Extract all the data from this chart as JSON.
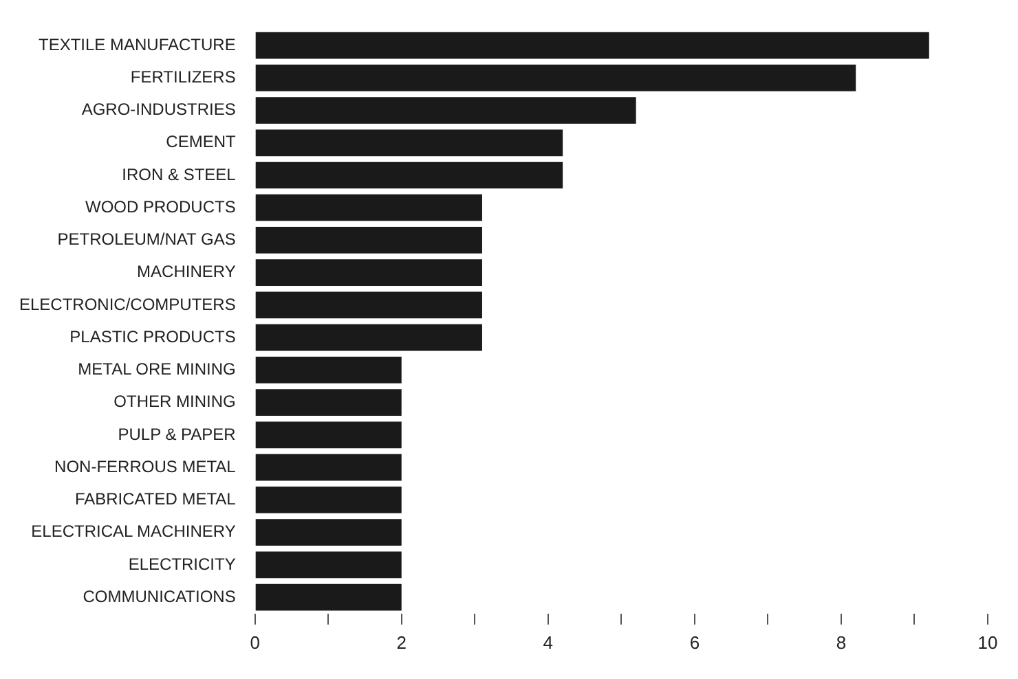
{
  "chart_data": {
    "type": "bar",
    "orientation": "horizontal",
    "categories": [
      "TEXTILE MANUFACTURE",
      "FERTILIZERS",
      "AGRO-INDUSTRIES",
      "CEMENT",
      "IRON & STEEL",
      "WOOD PRODUCTS",
      "PETROLEUM/NAT GAS",
      "MACHINERY",
      "ELECTRONIC/COMPUTERS",
      "PLASTIC PRODUCTS",
      "METAL ORE MINING",
      "OTHER MINING",
      "PULP & PAPER",
      "NON-FERROUS METAL",
      "FABRICATED METAL",
      "ELECTRICAL MACHINERY",
      "ELECTRICITY",
      "COMMUNICATIONS"
    ],
    "values": [
      9.2,
      8.2,
      5.2,
      4.2,
      4.2,
      3.1,
      3.1,
      3.1,
      3.1,
      3.1,
      2,
      2,
      2,
      2,
      2,
      2,
      2,
      2
    ],
    "color": "#1a1a1a",
    "xlim": [
      0,
      10
    ],
    "xticks": [
      0,
      {
        "value": 1,
        "label": null
      },
      2,
      {
        "value": 3,
        "label": null
      },
      4,
      {
        "value": 5,
        "label": null
      },
      6,
      {
        "value": 7,
        "label": null
      },
      8,
      {
        "value": 9,
        "label": null
      },
      10
    ],
    "grid": false
  }
}
